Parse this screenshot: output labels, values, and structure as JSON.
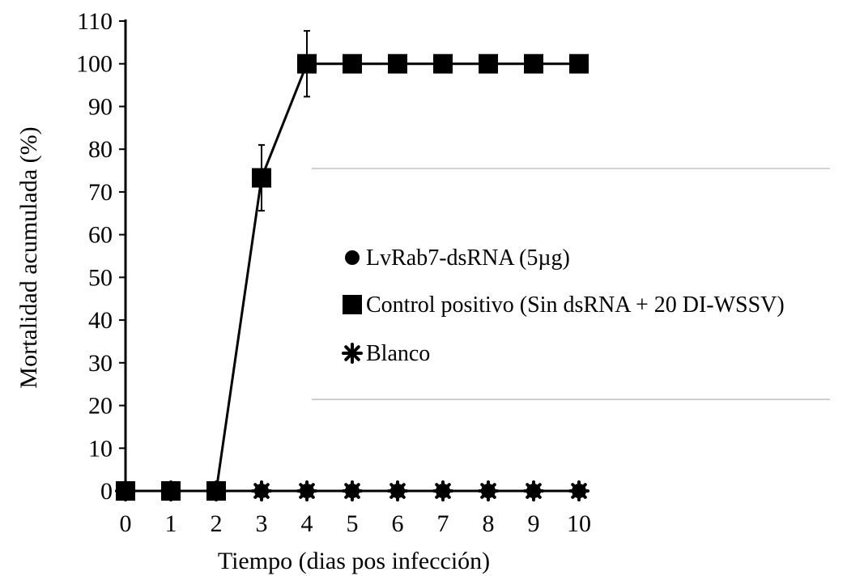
{
  "chart_data": {
    "type": "line",
    "title": "",
    "xlabel": "Tiempo (dias pos infección)",
    "ylabel": "Mortalidad acumulada (%)",
    "x": [
      0,
      1,
      2,
      3,
      4,
      5,
      6,
      7,
      8,
      9,
      10
    ],
    "xlim": [
      0,
      10
    ],
    "ylim": [
      0,
      110
    ],
    "yticks": [
      0,
      10,
      20,
      30,
      40,
      50,
      60,
      70,
      80,
      90,
      100,
      110
    ],
    "grid": false,
    "legend_placement": "center-right",
    "series": [
      {
        "name": "LvRab7-dsRNA (5µg)",
        "marker": "circle",
        "color": "#000000",
        "values": [
          0,
          0,
          0,
          0,
          0,
          0,
          0,
          0,
          0,
          0,
          0
        ],
        "error": null
      },
      {
        "name": "Control positivo (Sin dsRNA + 20 DI-WSSV)",
        "marker": "square",
        "color": "#000000",
        "values": [
          0,
          0,
          0,
          73.3,
          100,
          100,
          100,
          100,
          100,
          100,
          100
        ],
        "error": [
          0,
          0,
          0,
          7.7,
          7.7,
          0,
          0,
          0,
          0,
          0,
          0
        ]
      },
      {
        "name": "Blanco",
        "marker": "asterisk",
        "color": "#000000",
        "values": [
          0,
          0,
          0,
          0,
          0,
          0,
          0,
          0,
          0,
          0,
          0
        ],
        "error": null
      }
    ]
  }
}
